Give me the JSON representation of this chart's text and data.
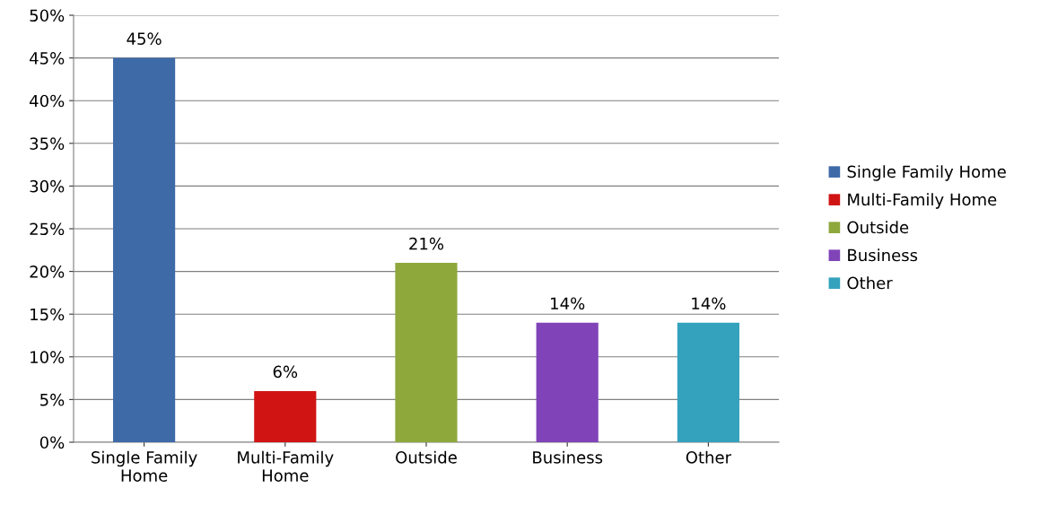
{
  "chart_data": {
    "type": "bar",
    "categories": [
      "Single Family Home",
      "Multi-Family Home",
      "Outside",
      "Business",
      "Other"
    ],
    "series": [
      {
        "name": "Single Family Home",
        "color": "#3e6aa8",
        "values": [
          45,
          null,
          null,
          null,
          null
        ],
        "value_labels": [
          "45%",
          null,
          null,
          null,
          null
        ]
      },
      {
        "name": "Multi-Family Home",
        "color": "#d01414",
        "values": [
          null,
          6,
          null,
          null,
          null
        ],
        "value_labels": [
          null,
          "6%",
          null,
          null,
          null
        ]
      },
      {
        "name": "Outside",
        "color": "#8ea83c",
        "values": [
          null,
          null,
          21,
          null,
          null
        ],
        "value_labels": [
          null,
          null,
          "21%",
          null,
          null
        ]
      },
      {
        "name": "Business",
        "color": "#8044b8",
        "values": [
          null,
          null,
          null,
          14,
          null
        ],
        "value_labels": [
          null,
          null,
          null,
          "14%",
          null
        ]
      },
      {
        "name": "Other",
        "color": "#34a2bd",
        "values": [
          null,
          null,
          null,
          null,
          14
        ],
        "value_labels": [
          null,
          null,
          null,
          null,
          "14%"
        ]
      }
    ],
    "stacked": true,
    "ylim": [
      0,
      50
    ],
    "yticks": [
      {
        "value": 0,
        "label": "0%"
      },
      {
        "value": 5,
        "label": "5%"
      },
      {
        "value": 10,
        "label": "10%"
      },
      {
        "value": 15,
        "label": "15%"
      },
      {
        "value": 20,
        "label": "20%"
      },
      {
        "value": 25,
        "label": "25%"
      },
      {
        "value": 30,
        "label": "30%"
      },
      {
        "value": 35,
        "label": "35%"
      },
      {
        "value": 40,
        "label": "40%"
      },
      {
        "value": 45,
        "label": "45%"
      },
      {
        "value": 50,
        "label": "50%"
      }
    ],
    "grid": "y",
    "legend": "right"
  }
}
